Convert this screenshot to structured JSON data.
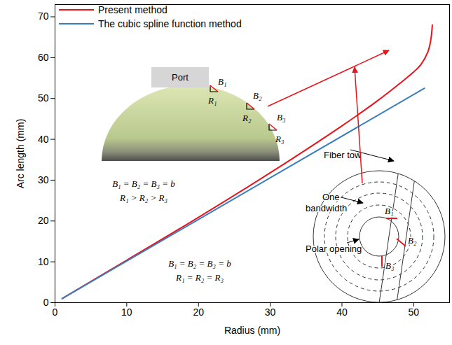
{
  "chart_data": {
    "type": "line",
    "x_label": "Radius (mm)",
    "y_label": "Arc length (mm)",
    "xlim": [
      0,
      55
    ],
    "ylim": [
      0,
      73
    ],
    "xticks": [
      0,
      10,
      20,
      30,
      40,
      50
    ],
    "yticks": [
      0,
      10,
      20,
      30,
      40,
      50,
      60,
      70
    ],
    "legend": "top-left",
    "series": [
      {
        "name": "Present method",
        "color": "#e8141c",
        "x": [
          1,
          10,
          20,
          30,
          40,
          45,
          48,
          50,
          51,
          52,
          52.4,
          52.6
        ],
        "values": [
          1,
          10.4,
          20.9,
          31.8,
          43.3,
          49.5,
          53.6,
          56.5,
          58.3,
          61.5,
          64.5,
          68
        ]
      },
      {
        "name": "The cubic spline function method",
        "color": "#3a7ebf",
        "x": [
          1,
          51.5
        ],
        "values": [
          1,
          52.5
        ]
      }
    ],
    "annotations": {
      "port": "Port",
      "dome_labels": [
        "B₁",
        "R₁",
        "B₂",
        "R₂",
        "B₃",
        "R₃"
      ],
      "dome_equal_width": "B₁ = B₂ = B₃ = b",
      "dome_radii": "R₁ > R₂ > R₃",
      "linear_equal_width": "B₁ = B₂ = B₃ = b",
      "linear_radii": "R₁ = R₂ = R₃",
      "fiber_tow": "Fiber tow",
      "one_bandwidth": "One bandwidth",
      "polar_opening": "Polar opening",
      "ring_labels": [
        "B₁",
        "B₂",
        "B₃"
      ]
    }
  }
}
